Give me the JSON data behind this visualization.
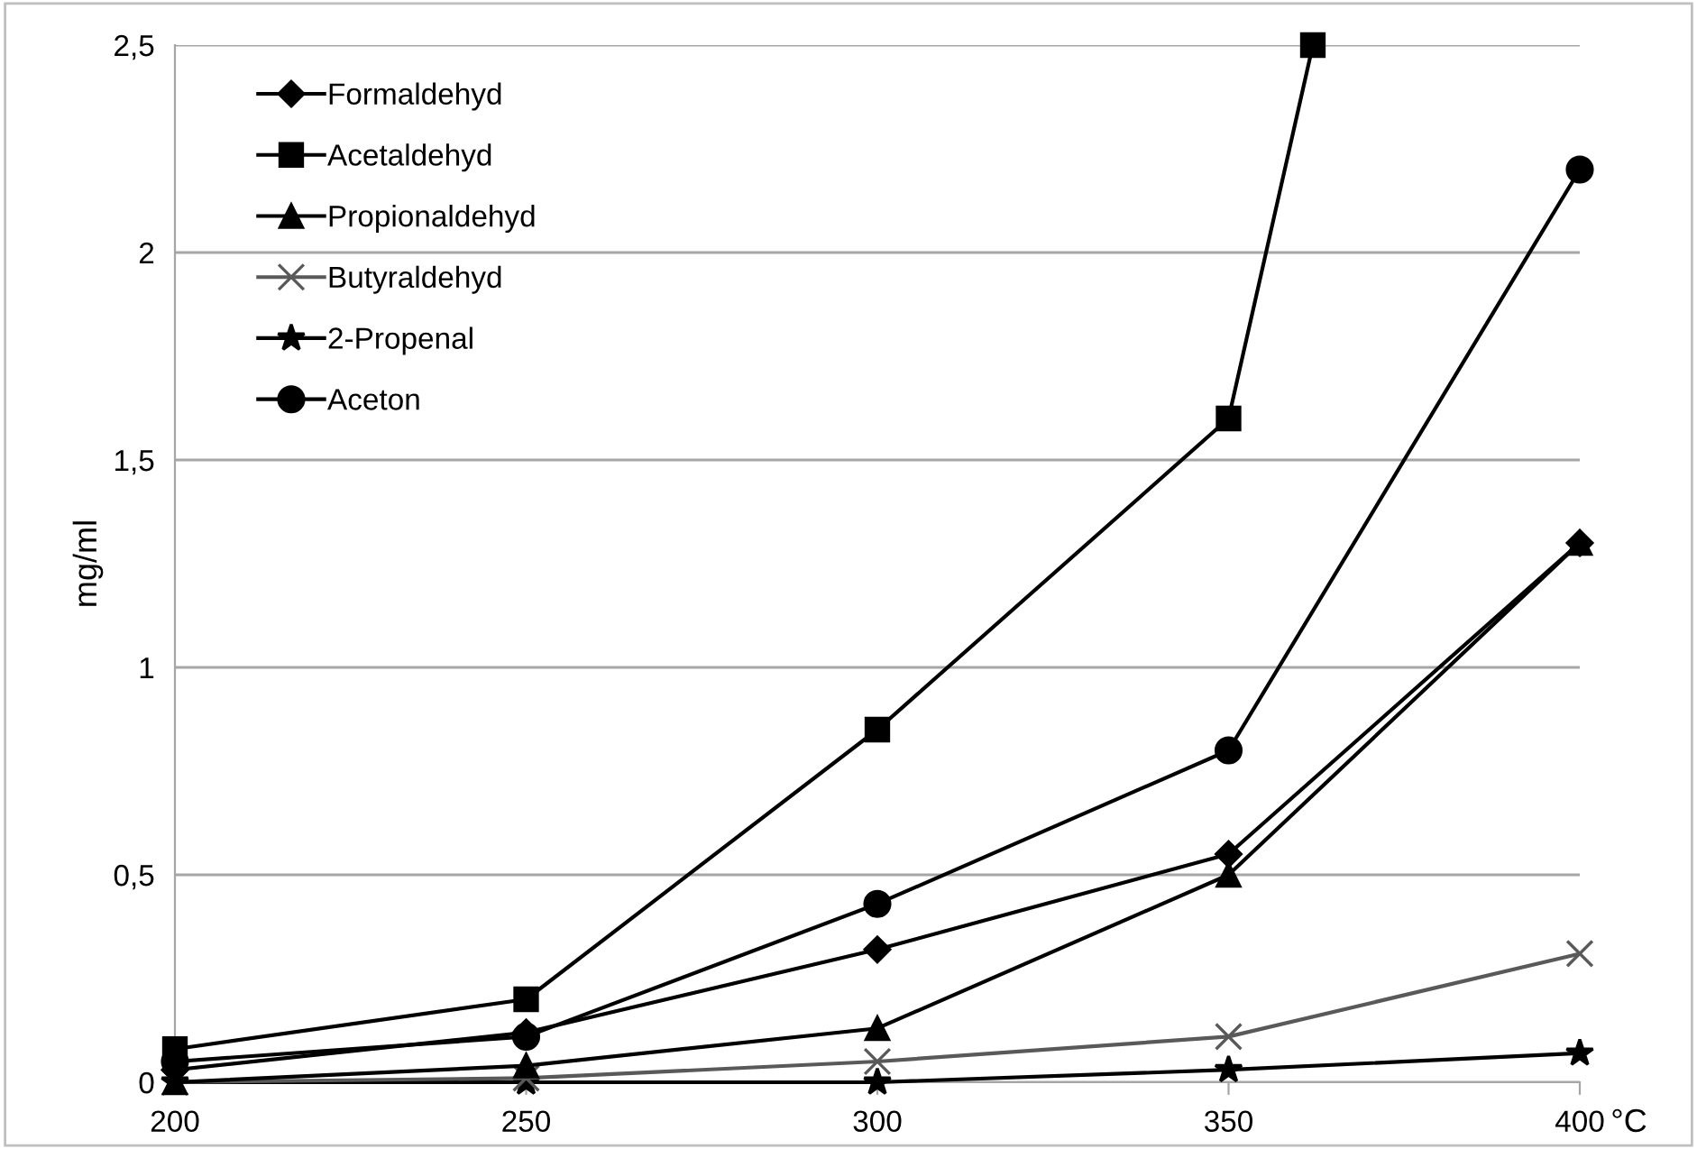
{
  "chart_data": {
    "type": "line",
    "xlabel": "°C",
    "ylabel": "mg/ml",
    "x": [
      200,
      250,
      300,
      350,
      400
    ],
    "xlim": [
      200,
      400
    ],
    "xticks": [
      200,
      250,
      300,
      350,
      400
    ],
    "ylim": [
      0,
      2.5
    ],
    "yticks": [
      {
        "value": 0,
        "label": "0"
      },
      {
        "value": 0.5,
        "label": "0,5"
      },
      {
        "value": 1,
        "label": "1"
      },
      {
        "value": 1.5,
        "label": "1,5"
      },
      {
        "value": 2,
        "label": "2"
      },
      {
        "value": 2.5,
        "label": "2,5"
      }
    ],
    "grid": "y",
    "legend": "top left",
    "line_style": "solid",
    "series": [
      {
        "name": "Formaldehyd",
        "color": "#000000",
        "marker": "diamond",
        "values": [
          0.03,
          0.12,
          0.32,
          0.55,
          1.3
        ]
      },
      {
        "name": "Acetaldehyd",
        "color": "#000000",
        "marker": "square",
        "x": [
          200,
          250,
          300,
          350,
          362
        ],
        "values": [
          0.08,
          0.2,
          0.85,
          1.6,
          2.5
        ]
      },
      {
        "name": "Propionaldehyd",
        "color": "#000000",
        "marker": "triangle",
        "values": [
          0,
          0.04,
          0.13,
          0.5,
          1.3
        ]
      },
      {
        "name": "Butyraldehyd",
        "color": "#595959",
        "marker": "cross",
        "values": [
          0,
          0.01,
          0.05,
          0.11,
          0.31
        ]
      },
      {
        "name": "2-Propenal",
        "color": "#000000",
        "marker": "star",
        "values": [
          0,
          0,
          0,
          0.03,
          0.07
        ]
      },
      {
        "name": "Aceton",
        "color": "#000000",
        "marker": "circle",
        "values": [
          0.05,
          0.11,
          0.43,
          0.8,
          2.2
        ]
      }
    ]
  }
}
